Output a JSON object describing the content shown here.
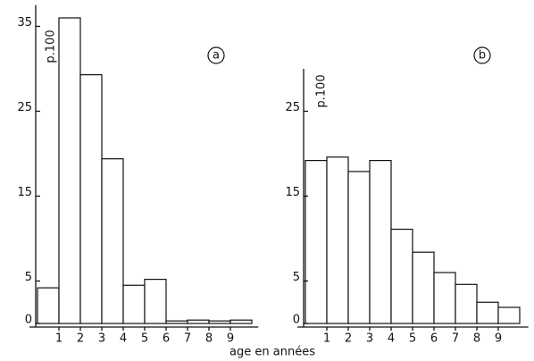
{
  "chart_data": [
    {
      "type": "histogram",
      "panel_label": "a",
      "ylabel": "p.100",
      "xlabel": "age en années",
      "bins": [
        0,
        1,
        2,
        3,
        4,
        5,
        6,
        7,
        8,
        9,
        10
      ],
      "values": [
        4.2,
        36,
        29.3,
        19.4,
        4.5,
        5.2,
        0.3,
        0.4,
        0.3,
        0.4
      ],
      "xlim": [
        0,
        10.3
      ],
      "xticks": [
        1,
        2,
        3,
        4,
        5,
        6,
        7,
        8,
        9
      ],
      "ylim": [
        0,
        37.5
      ],
      "yticks": [
        0,
        5,
        15,
        25,
        35
      ],
      "color": "#ffffff"
    },
    {
      "type": "histogram",
      "panel_label": "b",
      "ylabel": "p.100",
      "bins": [
        0,
        1,
        2,
        3,
        4,
        5,
        6,
        7,
        8,
        9,
        10
      ],
      "values": [
        19.2,
        19.6,
        17.9,
        19.2,
        11.1,
        8.4,
        6.0,
        4.6,
        2.5,
        1.9
      ],
      "xlim": [
        0,
        10.4
      ],
      "xticks": [
        1,
        2,
        3,
        4,
        5,
        6,
        7,
        8,
        9
      ],
      "ylim": [
        0,
        30
      ],
      "yticks": [
        0,
        5,
        15,
        25
      ],
      "color": "#ffffff"
    }
  ]
}
